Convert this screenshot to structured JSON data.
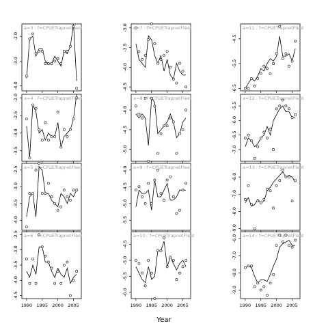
{
  "figure": {
    "xlabel": "Year",
    "x_ticks": [
      1990,
      1995,
      2000,
      2005
    ],
    "panel_label_prefix": "a=",
    "panel_label_sep": " :  f=",
    "panel_fleet": "CPUETrapnetFleet"
  },
  "chart_data": [
    {
      "type": "scatter",
      "panel": "a=3",
      "fleet": "CPUETrapnetFleet",
      "xlim": [
        1988.5,
        2007.5
      ],
      "ylim": [
        -4.2,
        -1.5
      ],
      "y_ticks": [
        -2.0,
        -3.0,
        -4.0
      ],
      "x": [
        1990,
        1991,
        1992,
        1993,
        1994,
        1995,
        1996,
        1997,
        1998,
        1999,
        2000,
        2001,
        2002,
        2003,
        2004,
        2005,
        2006
      ],
      "fitted": [
        -3.7,
        -2.1,
        -2.0,
        -2.8,
        -2.5,
        -2.5,
        -3.0,
        -3.1,
        -3.1,
        -2.8,
        -3.0,
        -3.2,
        -2.6,
        -2.7,
        -2.4,
        -1.5,
        -3.8
      ],
      "observed": [
        -3.6,
        -2.1,
        -1.9,
        -2.7,
        -2.6,
        -2.6,
        -3.1,
        -3.1,
        -3.1,
        -3.0,
        -2.9,
        -3.1,
        -2.6,
        -2.6,
        -2.4,
        -1.6,
        -4.1
      ]
    },
    {
      "type": "scatter",
      "panel": "a=7",
      "fleet": "CPUETrapnetFleet",
      "xlim": [
        1988.5,
        2007.5
      ],
      "ylim": [
        -4.6,
        -2.9
      ],
      "y_ticks": [
        -3.0,
        -3.5,
        -4.0,
        -4.5
      ],
      "x": [
        1990,
        1991,
        1992,
        1993,
        1994,
        1995,
        1996,
        1997,
        1998,
        1999,
        2000,
        2001,
        2002,
        2003,
        2004,
        2005,
        2006
      ],
      "fitted": [
        -3.4,
        -3.8,
        -3.9,
        -4.0,
        -3.2,
        -3.3,
        -3.7,
        -3.9,
        -3.7,
        -4.1,
        -3.8,
        -4.2,
        -4.3,
        -3.9,
        -4.1,
        -4.2,
        -4.2
      ],
      "observed": [
        -3.0,
        -3.6,
        -3.8,
        -3.7,
        -3.3,
        -2.9,
        -3.4,
        -3.9,
        -3.8,
        -3.7,
        -3.6,
        -4.0,
        -4.3,
        -4.4,
        -3.9,
        -4.1,
        -4.5
      ]
    },
    {
      "type": "scatter",
      "panel": "a=11",
      "fleet": "CPUETrapnetFleet",
      "xlim": [
        1988.5,
        2007.5
      ],
      "ylim": [
        -6.6,
        -3.9
      ],
      "y_ticks": [
        -4.5,
        -5.5,
        -6.5
      ],
      "x": [
        1990,
        1991,
        1992,
        1993,
        1994,
        1995,
        1996,
        1997,
        1998,
        1999,
        2000,
        2001,
        2002,
        2003,
        2004,
        2005,
        2006
      ],
      "fitted": [
        -6.5,
        -6.3,
        -6.1,
        -6.2,
        -6.0,
        -5.7,
        -5.8,
        -5.5,
        -5.3,
        -5.4,
        -5.2,
        -4.4,
        -5.2,
        -5.2,
        -5.1,
        -5.4,
        -4.9
      ],
      "observed": [
        -6.5,
        -6.5,
        -6.1,
        -6.4,
        -6.1,
        -5.9,
        -5.6,
        -5.7,
        -5.9,
        -5.5,
        -5.1,
        -4.0,
        -5.3,
        -5.1,
        -5.6,
        -5.4,
        -4.6
      ]
    },
    {
      "type": "scatter",
      "panel": "a=4",
      "fleet": "CPUETrapnetFleet",
      "xlim": [
        1988.5,
        2007.5
      ],
      "ylim": [
        -3.8,
        -1.9
      ],
      "y_ticks": [
        -2.0,
        -2.5,
        -3.0,
        -3.5
      ],
      "x": [
        1990,
        1991,
        1992,
        1993,
        1994,
        1995,
        1996,
        1997,
        1998,
        1999,
        2000,
        2001,
        2002,
        2003,
        2004,
        2005,
        2006
      ],
      "fitted": [
        -2.8,
        -3.7,
        -2.2,
        -2.4,
        -3.0,
        -2.9,
        -3.2,
        -3.0,
        -3.1,
        -3.1,
        -2.7,
        -3.4,
        -3.1,
        -3.0,
        -2.9,
        -2.6,
        -1.9
      ],
      "observed": [
        -2.6,
        -3.7,
        -2.2,
        -2.3,
        -2.9,
        -3.2,
        -2.7,
        -3.2,
        -3.1,
        -3.1,
        -2.4,
        -3.4,
        -2.9,
        -3.1,
        -2.9,
        -2.6,
        -2.0
      ]
    },
    {
      "type": "scatter",
      "panel": "a=8",
      "fleet": "CPUETrapnetFleet",
      "xlim": [
        1988.5,
        2007.5
      ],
      "ylim": [
        -5.3,
        -3.6
      ],
      "y_ticks": [
        -4.0,
        -4.5,
        -5.0
      ],
      "x": [
        1990,
        1991,
        1992,
        1993,
        1994,
        1995,
        1996,
        1997,
        1998,
        1999,
        2000,
        2001,
        2002,
        2003,
        2004,
        2005,
        2006
      ],
      "fitted": [
        -4.1,
        -4.2,
        -4.1,
        -4.2,
        -4.9,
        -3.7,
        -3.8,
        -4.6,
        -4.5,
        -4.4,
        -4.3,
        -4.1,
        -4.3,
        -4.7,
        -4.6,
        -4.3,
        -4.2
      ],
      "observed": [
        -3.9,
        -4.1,
        -4.2,
        -3.7,
        -5.3,
        -3.7,
        -3.9,
        -5.1,
        -4.6,
        -4.4,
        -4.4,
        -4.2,
        -4.3,
        -5.1,
        -4.6,
        -4.5,
        -4.0
      ]
    },
    {
      "type": "scatter",
      "panel": "a=12",
      "fleet": "CPUETrapnetFleet",
      "xlim": [
        1988.5,
        2007.5
      ],
      "ylim": [
        -7.4,
        -5.1
      ],
      "y_ticks": [
        -5.5,
        -6.0,
        -6.5,
        -7.0
      ],
      "x": [
        1990,
        1991,
        1992,
        1993,
        1994,
        1995,
        1996,
        1997,
        1998,
        1999,
        2000,
        2001,
        2002,
        2003,
        2004,
        2005,
        2006
      ],
      "fitted": [
        -6.9,
        -6.6,
        -6.7,
        -6.9,
        -6.8,
        -6.6,
        -6.5,
        -6.2,
        -6.5,
        -6.0,
        -5.8,
        -5.6,
        -5.5,
        -5.7,
        -5.7,
        -5.9,
        -5.9
      ],
      "observed": [
        -6.6,
        -6.5,
        -6.7,
        -7.3,
        -6.9,
        -6.6,
        -6.4,
        -6.6,
        -6.3,
        -7.0,
        -5.6,
        -5.5,
        -5.3,
        -5.5,
        -5.6,
        -5.9,
        -5.8
      ]
    },
    {
      "type": "scatter",
      "panel": "a=5",
      "fleet": "CPUETrapnetFleet",
      "xlim": [
        1988.5,
        2007.5
      ],
      "ylim": [
        -4.3,
        -2.3
      ],
      "y_ticks": [
        -2.5,
        -3.0,
        -3.5,
        -4.0
      ],
      "x": [
        1990,
        1991,
        1992,
        1993,
        1994,
        1995,
        1996,
        1997,
        1998,
        1999,
        2000,
        2001,
        2002,
        2003,
        2004,
        2005,
        2006
      ],
      "fitted": [
        -3.9,
        -3.3,
        -3.2,
        -3.9,
        -2.4,
        -2.5,
        -3.2,
        -3.2,
        -3.4,
        -3.5,
        -3.6,
        -3.2,
        -3.3,
        -3.5,
        -3.2,
        -3.3,
        -3.1
      ],
      "observed": [
        -4.2,
        -3.2,
        -3.2,
        -2.5,
        -2.3,
        -3.2,
        -3.2,
        -2.9,
        -3.3,
        -3.5,
        -3.7,
        -3.6,
        -3.1,
        -3.3,
        -3.4,
        -3.1,
        -3.1
      ]
    },
    {
      "type": "scatter",
      "panel": "a=9",
      "fleet": "CPUETrapnetFleet",
      "xlim": [
        1988.5,
        2007.5
      ],
      "ylim": [
        -5.8,
        -3.8
      ],
      "y_ticks": [
        -4.0,
        -4.5,
        -5.0,
        -5.5
      ],
      "x": [
        1990,
        1991,
        1992,
        1993,
        1994,
        1995,
        1996,
        1997,
        1998,
        1999,
        2000,
        2001,
        2002,
        2003,
        2004,
        2005,
        2006
      ],
      "fitted": [
        -5.1,
        -4.6,
        -4.7,
        -4.7,
        -4.6,
        -5.2,
        -4.3,
        -4.8,
        -4.8,
        -4.6,
        -4.4,
        -4.9,
        -4.9,
        -4.8,
        -4.6,
        -4.6,
        -4.6
      ],
      "observed": [
        -4.6,
        -4.5,
        -4.8,
        -5.0,
        -4.4,
        -5.0,
        -4.3,
        -4.0,
        -4.7,
        -4.9,
        -4.3,
        -4.2,
        -4.8,
        -5.3,
        -5.2,
        -4.6,
        -4.4
      ]
    },
    {
      "type": "scatter",
      "panel": "a=13",
      "fleet": "CPUETrapnetFleet",
      "xlim": [
        1988.5,
        2007.5
      ],
      "ylim": [
        -9.1,
        -5.2
      ],
      "y_ticks": [
        -6.0,
        -7.0,
        -8.0,
        -9.0
      ],
      "x": [
        1990,
        1991,
        1992,
        1993,
        1994,
        1995,
        1996,
        1997,
        1998,
        1999,
        2000,
        2001,
        2002,
        2003,
        2004,
        2005,
        2006
      ],
      "fitted": [
        -7.5,
        -7.2,
        -7.7,
        -7.6,
        -7.3,
        -7.5,
        -7.4,
        -6.8,
        -6.6,
        -6.3,
        -6.1,
        -5.9,
        -5.7,
        -6.0,
        -5.9,
        -6.0,
        -6.3
      ],
      "observed": [
        -7.3,
        -6.5,
        -7.6,
        -9.0,
        -7.4,
        -7.5,
        -7.3,
        -6.7,
        -6.8,
        -7.8,
        -6.5,
        -6.2,
        -5.6,
        -6.0,
        -6.0,
        -7.4,
        -6.2
      ]
    },
    {
      "type": "scatter",
      "panel": "a=6",
      "fleet": "CPUETrapnetFleet",
      "xlim": [
        1988.5,
        2007.5
      ],
      "ylim": [
        -4.6,
        -2.4
      ],
      "y_ticks": [
        -2.5,
        -3.0,
        -3.5,
        -4.0,
        -4.5
      ],
      "x": [
        1990,
        1991,
        1992,
        1993,
        1994,
        1995,
        1996,
        1997,
        1998,
        1999,
        2000,
        2001,
        2002,
        2003,
        2004,
        2005,
        2006
      ],
      "fitted": [
        -3.7,
        -3.9,
        -3.5,
        -3.8,
        -2.9,
        -2.9,
        -3.4,
        -3.4,
        -3.7,
        -3.9,
        -3.6,
        -3.8,
        -3.9,
        -3.6,
        -4.1,
        -3.9,
        -3.8
      ],
      "observed": [
        -3.3,
        -4.1,
        -3.3,
        -4.1,
        -2.5,
        -2.9,
        -3.2,
        -3.4,
        -3.6,
        -4.1,
        -3.7,
        -4.1,
        -3.5,
        -3.4,
        -4.5,
        -4.0,
        -3.7
      ]
    },
    {
      "type": "scatter",
      "panel": "a=10",
      "fleet": "CPUETrapnetFleet",
      "xlim": [
        1988.5,
        2007.5
      ],
      "ylim": [
        -6.2,
        -4.1
      ],
      "y_ticks": [
        -4.5,
        -5.0,
        -5.5,
        -6.0
      ],
      "x": [
        1990,
        1991,
        1992,
        1993,
        1994,
        1995,
        1996,
        1997,
        1998,
        1999,
        2000,
        2001,
        2002,
        2003,
        2004,
        2005,
        2006
      ],
      "fitted": [
        -5.2,
        -5.4,
        -5.6,
        -5.7,
        -5.2,
        -5.6,
        -5.5,
        -4.7,
        -4.7,
        -4.4,
        -5.2,
        -4.9,
        -5.1,
        -5.3,
        -5.1,
        -5.0,
        -5.2
      ],
      "observed": [
        -5.0,
        -5.1,
        -5.4,
        -5.8,
        -5.0,
        -5.4,
        -6.2,
        -4.7,
        -4.7,
        -4.3,
        -5.2,
        -4.9,
        -5.0,
        -5.6,
        -5.4,
        -5.2,
        -5.0
      ]
    },
    {
      "type": "scatter",
      "panel": "a=14",
      "fleet": "CPUETrapnetFleet",
      "xlim": [
        1988.5,
        2007.5
      ],
      "ylim": [
        -9.5,
        -5.6
      ],
      "y_ticks": [
        -6.0,
        -7.0,
        -8.0,
        -9.0
      ],
      "x": [
        1990,
        1991,
        1992,
        1993,
        1994,
        1995,
        1996,
        1997,
        1998,
        1999,
        2000,
        2001,
        2002,
        2003,
        2004,
        2005,
        2006
      ],
      "fitted": [
        -7.7,
        -7.6,
        -7.7,
        -8.2,
        -8.6,
        -8.4,
        -8.4,
        -8.5,
        -8.1,
        -7.6,
        -7.2,
        -6.5,
        -6.3,
        -6.2,
        -6.1,
        -6.4,
        -6.4
      ],
      "observed": [
        -7.7,
        -7.6,
        -7.6,
        -8.8,
        -8.6,
        -9.0,
        -8.8,
        -9.3,
        -8.6,
        -8.1,
        -6.4,
        -5.8,
        -6.2,
        -5.8,
        -6.4,
        -6.5,
        -6.1
      ]
    }
  ]
}
